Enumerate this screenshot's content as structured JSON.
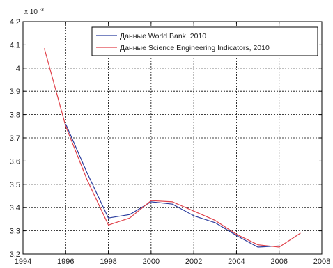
{
  "chart_data": {
    "type": "line",
    "title": "",
    "xlabel": "",
    "ylabel": "",
    "y_multiplier_text": "x 10",
    "y_multiplier_exp": "-3",
    "xlim": [
      1994,
      2008
    ],
    "ylim": [
      3.2,
      4.2
    ],
    "x_ticks": [
      1994,
      1996,
      1998,
      2000,
      2002,
      2004,
      2006,
      2008
    ],
    "y_ticks": [
      3.2,
      3.3,
      3.4,
      3.5,
      3.6,
      3.7,
      3.8,
      3.9,
      4.0,
      4.1,
      4.2
    ],
    "y_tick_labels": [
      "3.2",
      "3.3",
      "3.4",
      "3.5",
      "3.6",
      "3.7",
      "3.8",
      "3.9",
      "4",
      "4.1",
      "4.2"
    ],
    "grid": true,
    "legend_position": "top-right",
    "series": [
      {
        "name": "Данные World Bank, 2010",
        "color": "#2b3d9e",
        "x": [
          1996,
          1997,
          1998,
          1999,
          2000,
          2001,
          2002,
          2003,
          2004,
          2005,
          2006
        ],
        "y": [
          3.76,
          3.55,
          3.355,
          3.37,
          3.425,
          3.415,
          3.365,
          3.335,
          3.28,
          3.23,
          3.235
        ]
      },
      {
        "name": "Данные Science Engineering Indicators, 2010",
        "color": "#e0414a",
        "x": [
          1995,
          1996,
          1997,
          1998,
          1999,
          2000,
          2001,
          2002,
          2003,
          2004,
          2005,
          2006,
          2007
        ],
        "y": [
          4.085,
          3.75,
          3.52,
          3.325,
          3.355,
          3.43,
          3.425,
          3.385,
          3.345,
          3.285,
          3.24,
          3.23,
          3.29
        ]
      }
    ]
  }
}
